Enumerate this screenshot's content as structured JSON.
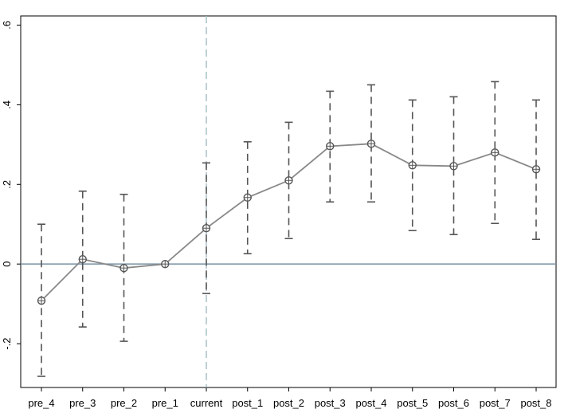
{
  "chart_data": {
    "type": "line",
    "title": "",
    "xlabel": "",
    "ylabel": "",
    "categories": [
      "pre_4",
      "pre_3",
      "pre_2",
      "pre_1",
      "current",
      "post_1",
      "post_2",
      "post_3",
      "post_4",
      "post_5",
      "post_6",
      "post_7",
      "post_8"
    ],
    "series": [
      {
        "values": [
          -0.092,
          0.012,
          -0.01,
          0.0,
          0.09,
          0.167,
          0.21,
          0.296,
          0.302,
          0.248,
          0.246,
          0.28,
          0.238
        ],
        "ci_lower": [
          -0.282,
          -0.158,
          -0.194,
          0.0,
          -0.074,
          0.026,
          0.064,
          0.156,
          0.156,
          0.084,
          0.074,
          0.102,
          0.062
        ],
        "ci_upper": [
          0.1,
          0.183,
          0.175,
          0.0,
          0.254,
          0.307,
          0.356,
          0.434,
          0.45,
          0.412,
          0.42,
          0.458,
          0.412
        ]
      }
    ],
    "ylim": [
      -0.31,
      0.623
    ],
    "yticks": [
      -0.2,
      0,
      0.2,
      0.4,
      0.6
    ],
    "ytick_labels": [
      "-.2",
      "0",
      ".2",
      ".4",
      ".6"
    ],
    "reference_lines": {
      "horizontal_y": 0,
      "vertical_category": "current"
    },
    "grid": false,
    "legend": "none",
    "colors": {
      "series_line": "#888888",
      "ci_bars": "#555555",
      "zero_line": "#7a94a6",
      "vertical_line": "#a8c0c8",
      "axis": "#000000"
    }
  }
}
